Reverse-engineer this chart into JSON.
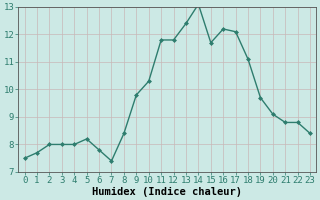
{
  "x": [
    0,
    1,
    2,
    3,
    4,
    5,
    6,
    7,
    8,
    9,
    10,
    11,
    12,
    13,
    14,
    15,
    16,
    17,
    18,
    19,
    20,
    21,
    22,
    23
  ],
  "y": [
    7.5,
    7.7,
    8.0,
    8.0,
    8.0,
    8.2,
    7.8,
    7.4,
    8.4,
    9.8,
    10.3,
    11.8,
    11.8,
    12.4,
    13.1,
    11.7,
    12.2,
    12.1,
    11.1,
    9.7,
    9.1,
    8.8,
    8.8,
    8.4
  ],
  "xlabel": "Humidex (Indice chaleur)",
  "ylim": [
    7,
    13
  ],
  "xlim_min": -0.5,
  "xlim_max": 23.5,
  "yticks": [
    7,
    8,
    9,
    10,
    11,
    12,
    13
  ],
  "xticks": [
    0,
    1,
    2,
    3,
    4,
    5,
    6,
    7,
    8,
    9,
    10,
    11,
    12,
    13,
    14,
    15,
    16,
    17,
    18,
    19,
    20,
    21,
    22,
    23
  ],
  "line_color": "#2e7d6e",
  "marker_color": "#2e7d6e",
  "bg_color": "#cce9e5",
  "grid_color": "#c8b8b8",
  "tick_label_fontsize": 6.5,
  "xlabel_fontsize": 7.5
}
